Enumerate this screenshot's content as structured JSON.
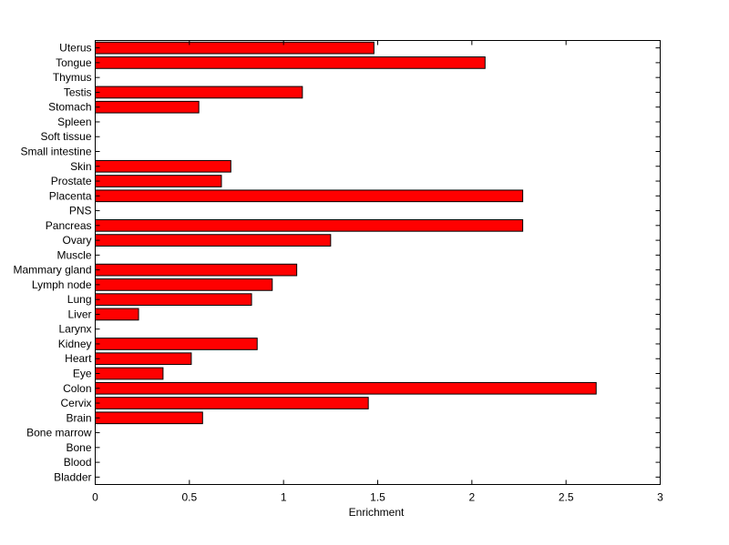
{
  "chart_data": {
    "type": "bar",
    "orientation": "horizontal",
    "title": "",
    "xlabel": "Enrichment",
    "ylabel": "",
    "xlim": [
      0,
      3
    ],
    "xticks": [
      0,
      0.5,
      1,
      1.5,
      2,
      2.5,
      3
    ],
    "xtick_labels": [
      "0",
      "0.5",
      "1",
      "1.5",
      "2",
      "2.5",
      "3"
    ],
    "grid": false,
    "legend": "none",
    "bar_color": "#ff0000",
    "categories": [
      "Bladder",
      "Blood",
      "Bone",
      "Bone marrow",
      "Brain",
      "Cervix",
      "Colon",
      "Eye",
      "Heart",
      "Kidney",
      "Larynx",
      "Liver",
      "Lung",
      "Lymph node",
      "Mammary gland",
      "Muscle",
      "Ovary",
      "Pancreas",
      "PNS",
      "Placenta",
      "Prostate",
      "Skin",
      "Small intestine",
      "Soft tissue",
      "Spleen",
      "Stomach",
      "Testis",
      "Thymus",
      "Tongue",
      "Uterus"
    ],
    "values": [
      0,
      0,
      0,
      0,
      0.57,
      1.45,
      2.66,
      0.36,
      0.51,
      0.86,
      0,
      0.23,
      0.83,
      0.94,
      1.07,
      0,
      1.25,
      2.27,
      0,
      2.27,
      0.67,
      0.72,
      0,
      0,
      0,
      0.55,
      1.1,
      0,
      2.07,
      1.48
    ]
  }
}
